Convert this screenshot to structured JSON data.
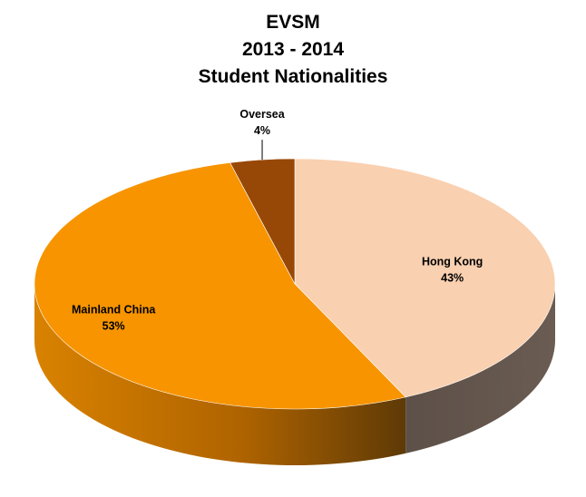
{
  "chart_data": {
    "type": "pie",
    "title_lines": [
      "EVSM",
      "2013 - 2014",
      "Student Nationalities"
    ],
    "categories": [
      "Hong Kong",
      "Mainland China",
      "Oversea"
    ],
    "values": [
      43,
      53,
      4
    ],
    "labels": [
      "43%",
      "53%",
      "4%"
    ],
    "colors": [
      "#F9D0B0",
      "#F79400",
      "#984806"
    ],
    "side_colors": [
      "#61544A",
      "#C77200",
      "#6B3304"
    ],
    "legend": "none",
    "style": "3d"
  }
}
